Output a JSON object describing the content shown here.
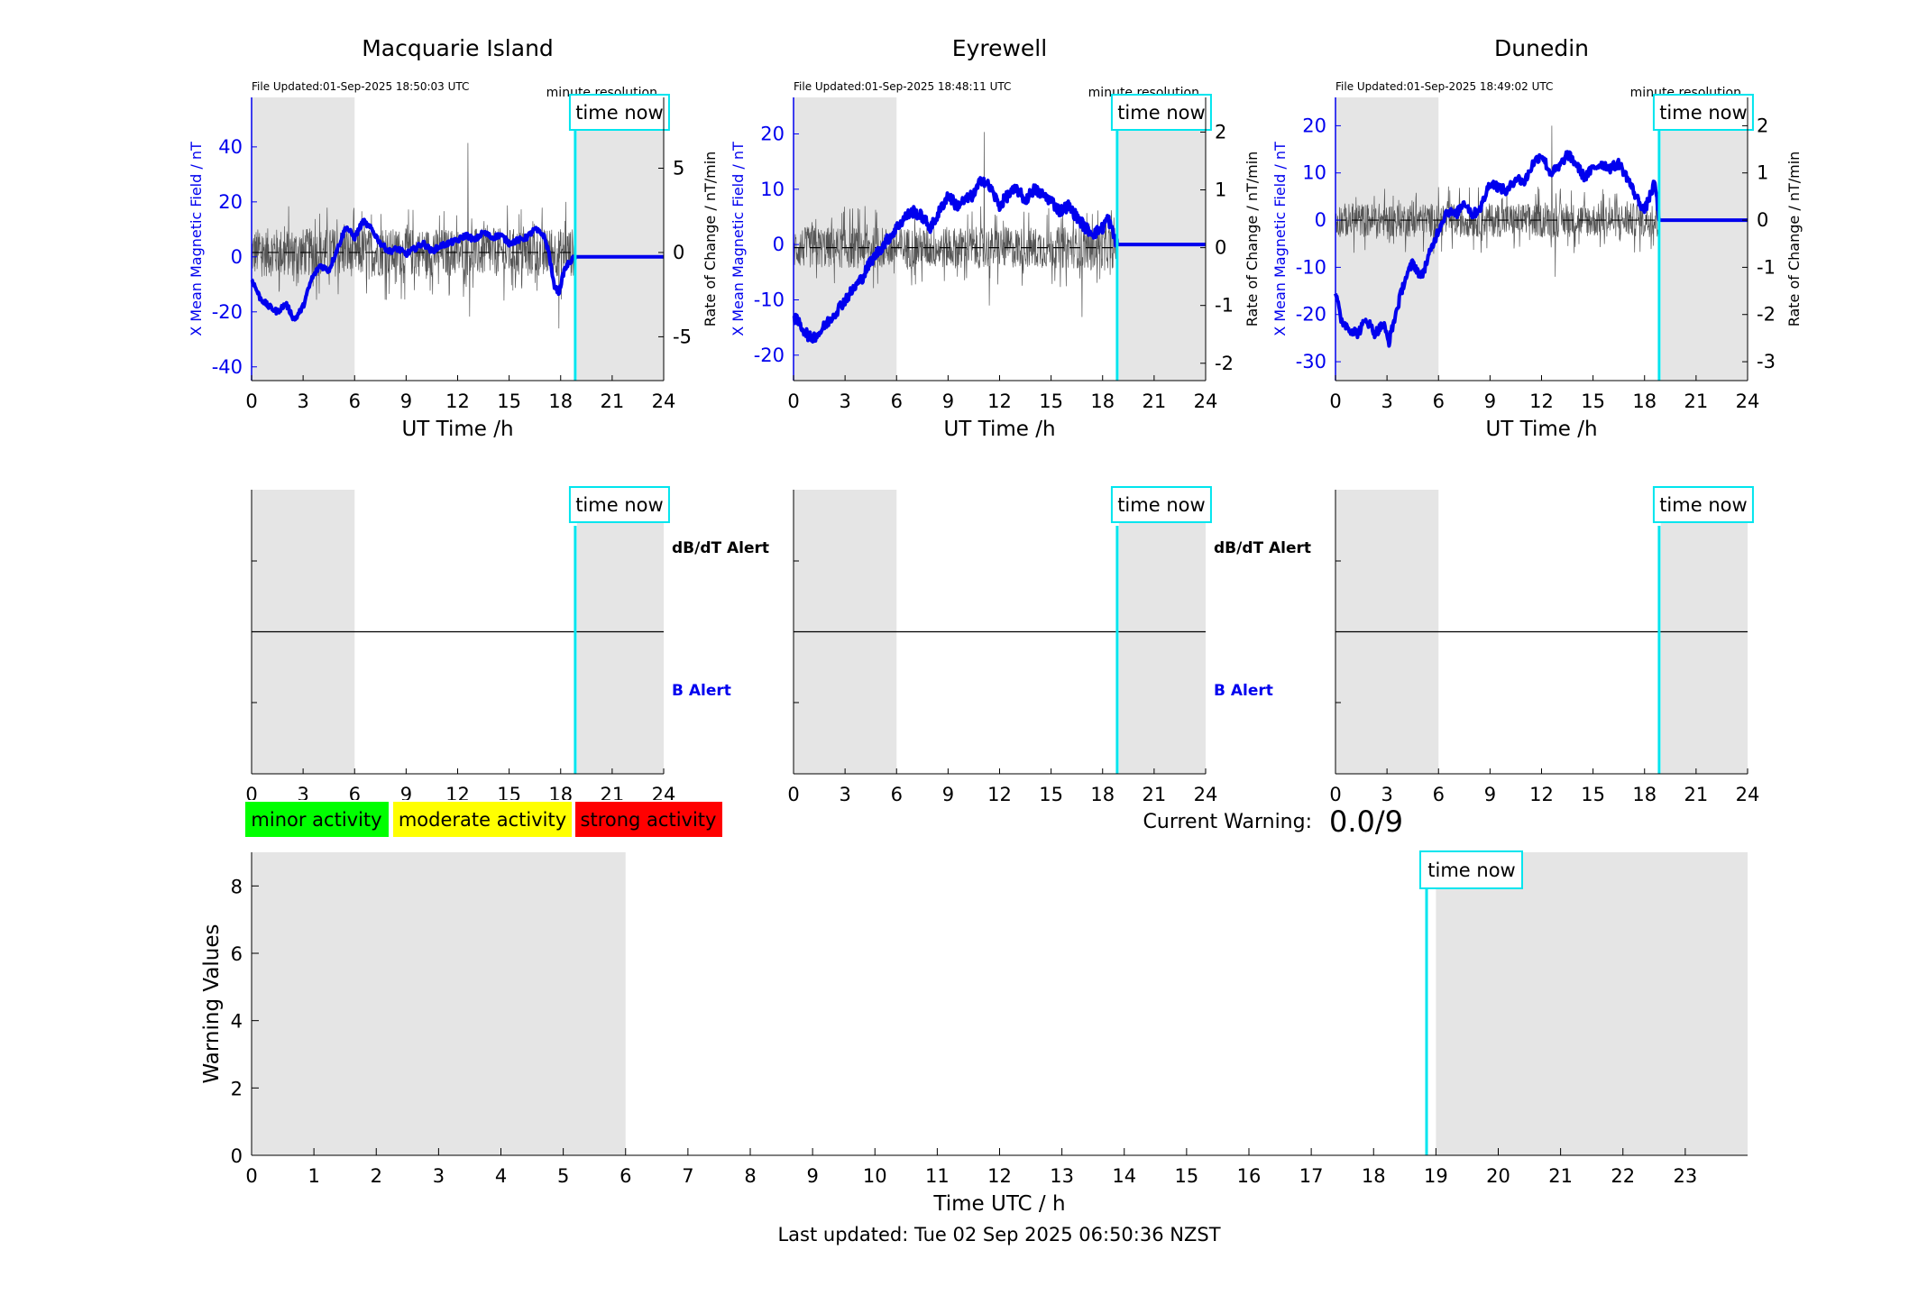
{
  "colors": {
    "field": "#0000ee",
    "rate": "#555555",
    "time_now": "#00e5ee",
    "night_shade": "#e5e5e5",
    "minor": "#00ff00",
    "moderate": "#ffff00",
    "strong": "#ff0000",
    "axis": "#000000"
  },
  "common": {
    "file_updated_prefix": "File Updated:",
    "minute_resolution": "minute resolution",
    "time_now_label": "time now",
    "x_axis_label": "UT Time /h",
    "left_axis_label": "X Mean Magnetic Field / nT",
    "right_axis_label": "Rate of Change / nT/min",
    "dbdt_alert": "dB/dT Alert",
    "b_alert": "B Alert"
  },
  "legend": {
    "minor": "minor activity",
    "moderate": "moderate activity",
    "strong": "strong activity"
  },
  "current_warning": {
    "label": "Current Warning:",
    "value": "0.0/9"
  },
  "footer": {
    "last_updated": "Last updated: Tue 02 Sep 2025 06:50:36 NZST"
  },
  "chart_data": [
    {
      "type": "line",
      "station": "Macquarie Island",
      "file_updated": "File Updated:01-Sep-2025 18:50:03 UTC",
      "x_range": [
        0,
        24
      ],
      "x_ticks": [
        0,
        3,
        6,
        9,
        12,
        15,
        18,
        21,
        24
      ],
      "left_ylim": [
        -45,
        58
      ],
      "left_ticks": [
        -40,
        -20,
        0,
        20,
        40
      ],
      "right_ylim": [
        -7.6,
        9.2
      ],
      "right_ticks": [
        -5,
        0,
        5
      ],
      "night_shade_hours": [
        [
          0,
          6
        ],
        [
          18.95,
          24
        ]
      ],
      "time_now_hour": 18.85,
      "field_keypoints": [
        [
          0,
          -8
        ],
        [
          0.5,
          -15
        ],
        [
          1,
          -18
        ],
        [
          1.5,
          -20
        ],
        [
          2,
          -17
        ],
        [
          2.5,
          -23
        ],
        [
          3,
          -18
        ],
        [
          3.5,
          -8
        ],
        [
          4,
          -3
        ],
        [
          4.5,
          -5
        ],
        [
          5,
          3
        ],
        [
          5.5,
          11
        ],
        [
          6,
          7
        ],
        [
          6.5,
          13
        ],
        [
          7,
          10
        ],
        [
          7.5,
          5
        ],
        [
          8,
          2
        ],
        [
          8.5,
          3
        ],
        [
          9,
          1
        ],
        [
          9.5,
          3
        ],
        [
          10,
          5
        ],
        [
          10.5,
          2
        ],
        [
          11,
          4
        ],
        [
          11.5,
          5
        ],
        [
          12,
          6
        ],
        [
          12.5,
          8
        ],
        [
          13,
          6
        ],
        [
          13.5,
          9
        ],
        [
          14,
          7
        ],
        [
          14.5,
          8
        ],
        [
          15,
          5
        ],
        [
          15.5,
          6
        ],
        [
          16,
          7
        ],
        [
          16.5,
          10
        ],
        [
          17,
          8
        ],
        [
          17.3,
          2
        ],
        [
          17.6,
          -10
        ],
        [
          17.9,
          -13
        ],
        [
          18.2,
          -5
        ],
        [
          18.5,
          -2
        ],
        [
          18.85,
          0
        ],
        [
          24,
          0
        ]
      ],
      "rate_amplitude": 1.8,
      "rate_spikes": [
        [
          12.6,
          6.5
        ],
        [
          12.7,
          -3.8
        ],
        [
          17.9,
          -4.5
        ],
        [
          18.3,
          3.0
        ]
      ]
    },
    {
      "type": "line",
      "station": "Eyrewell",
      "file_updated": "File Updated:01-Sep-2025 18:48:11 UTC",
      "x_range": [
        0,
        24
      ],
      "x_ticks": [
        0,
        3,
        6,
        9,
        12,
        15,
        18,
        21,
        24
      ],
      "left_ylim": [
        -24.6,
        26.6
      ],
      "left_ticks": [
        -20,
        -10,
        0,
        10,
        20
      ],
      "right_ylim": [
        -2.3,
        2.6
      ],
      "right_ticks": [
        -2,
        -1,
        0,
        1,
        2
      ],
      "night_shade_hours": [
        [
          0,
          6
        ],
        [
          18.95,
          24
        ]
      ],
      "time_now_hour": 18.85,
      "field_keypoints": [
        [
          0,
          -13
        ],
        [
          0.5,
          -15
        ],
        [
          1,
          -17
        ],
        [
          1.5,
          -16
        ],
        [
          2,
          -14
        ],
        [
          2.5,
          -12
        ],
        [
          3,
          -10
        ],
        [
          3.5,
          -8
        ],
        [
          4,
          -6
        ],
        [
          4.5,
          -3
        ],
        [
          5,
          -1
        ],
        [
          5.5,
          1
        ],
        [
          6,
          3
        ],
        [
          6.5,
          5
        ],
        [
          7,
          6
        ],
        [
          7.5,
          5
        ],
        [
          8,
          3
        ],
        [
          8.5,
          6
        ],
        [
          9,
          9
        ],
        [
          9.5,
          7
        ],
        [
          10,
          8
        ],
        [
          10.5,
          9
        ],
        [
          11,
          12
        ],
        [
          11.5,
          10
        ],
        [
          12,
          7
        ],
        [
          12.5,
          9
        ],
        [
          13,
          10
        ],
        [
          13.5,
          8
        ],
        [
          14,
          10
        ],
        [
          14.5,
          9
        ],
        [
          15,
          8
        ],
        [
          15.5,
          6
        ],
        [
          16,
          7
        ],
        [
          16.5,
          5
        ],
        [
          17,
          3
        ],
        [
          17.5,
          2
        ],
        [
          18,
          3
        ],
        [
          18.3,
          5
        ],
        [
          18.6,
          2
        ],
        [
          18.85,
          0
        ],
        [
          24,
          0
        ]
      ],
      "rate_amplitude": 0.45,
      "rate_spikes": [
        [
          11.1,
          2.0
        ],
        [
          11.4,
          -1.0
        ],
        [
          16.8,
          -1.2
        ]
      ]
    },
    {
      "type": "line",
      "station": "Dunedin",
      "file_updated": "File Updated:01-Sep-2025 18:49:02 UTC",
      "x_range": [
        0,
        24
      ],
      "x_ticks": [
        0,
        3,
        6,
        9,
        12,
        15,
        18,
        21,
        24
      ],
      "left_ylim": [
        -34,
        26
      ],
      "left_ticks": [
        -30,
        -20,
        -10,
        0,
        10,
        20
      ],
      "right_ylim": [
        -3.4,
        2.6
      ],
      "right_ticks": [
        -3,
        -2,
        -1,
        0,
        1,
        2
      ],
      "night_shade_hours": [
        [
          0,
          6
        ],
        [
          18.95,
          24
        ]
      ],
      "time_now_hour": 18.85,
      "field_keypoints": [
        [
          0,
          -15
        ],
        [
          0.3,
          -21
        ],
        [
          0.8,
          -23
        ],
        [
          1.3,
          -24
        ],
        [
          1.8,
          -21
        ],
        [
          2.3,
          -24
        ],
        [
          2.8,
          -22
        ],
        [
          3.1,
          -26
        ],
        [
          3.5,
          -20
        ],
        [
          4,
          -13
        ],
        [
          4.5,
          -9
        ],
        [
          5,
          -12
        ],
        [
          5.5,
          -7
        ],
        [
          6,
          -2
        ],
        [
          6.5,
          2
        ],
        [
          7,
          1
        ],
        [
          7.5,
          4
        ],
        [
          8,
          1
        ],
        [
          8.5,
          3
        ],
        [
          9,
          8
        ],
        [
          9.5,
          7
        ],
        [
          10,
          6
        ],
        [
          10.5,
          9
        ],
        [
          11,
          8
        ],
        [
          11.5,
          12
        ],
        [
          12,
          14
        ],
        [
          12.5,
          10
        ],
        [
          13,
          11
        ],
        [
          13.5,
          14
        ],
        [
          14,
          12
        ],
        [
          14.5,
          9
        ],
        [
          15,
          11
        ],
        [
          15.5,
          12
        ],
        [
          16,
          11
        ],
        [
          16.5,
          12
        ],
        [
          17,
          9
        ],
        [
          17.5,
          5
        ],
        [
          18,
          2
        ],
        [
          18.3,
          5
        ],
        [
          18.6,
          8
        ],
        [
          18.85,
          0
        ],
        [
          24,
          0
        ]
      ],
      "rate_amplitude": 0.45,
      "rate_spikes": [
        [
          12.6,
          2.0
        ],
        [
          12.8,
          -1.2
        ]
      ]
    },
    {
      "type": "line",
      "title": "",
      "xlabel": "Time UTC / h",
      "ylabel": "Warning Values",
      "x_range": [
        0,
        24
      ],
      "x_ticks": [
        0,
        1,
        2,
        3,
        4,
        5,
        6,
        7,
        8,
        9,
        10,
        11,
        12,
        13,
        14,
        15,
        16,
        17,
        18,
        19,
        20,
        21,
        22,
        23
      ],
      "ylim": [
        0,
        9
      ],
      "y_ticks": [
        0,
        2,
        4,
        6,
        8
      ],
      "night_shade_hours": [
        [
          0,
          6
        ],
        [
          19,
          24
        ]
      ],
      "time_now_hour": 18.85,
      "series": []
    }
  ]
}
